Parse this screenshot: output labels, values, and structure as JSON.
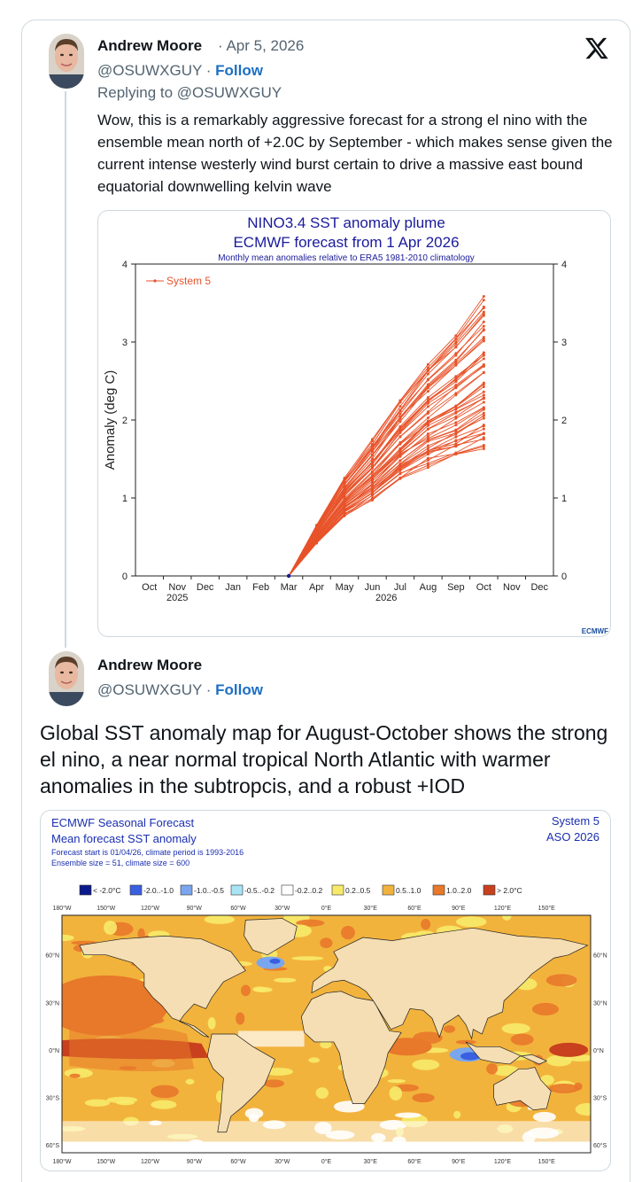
{
  "tweet1": {
    "name": "Andrew Moore",
    "date": "· Apr 5, 2026",
    "handle": "@OSUWXGUY",
    "follow": "Follow",
    "replying": "Replying to @OSUWXGUY",
    "text": "Wow, this is a remarkably aggressive forecast for a strong el nino with the ensemble mean north of +2.0C by September - which makes sense given the current intense westerly wind burst certain to drive a massive east bound equatorial downwelling kelvin wave"
  },
  "tweet2": {
    "name": "Andrew Moore",
    "handle": "@OSUWXGUY",
    "follow": "Follow",
    "text": "Global SST anomaly map for August-October shows the strong el nino, a near normal tropical North Atlantic with warmer anomalies in the subtropcis, and a robust +IOD"
  },
  "icons": {
    "brand": "x-logo-icon"
  },
  "chart_data": {
    "type": "line",
    "title": "NINO3.4 SST anomaly plume",
    "subtitle": "ECMWF forecast from 1 Apr 2026",
    "note": "Monthly mean anomalies relative to ERA5 1981-2010 climatology",
    "ylabel": "Anomaly (deg C)",
    "ylim": [
      0,
      4
    ],
    "yticks": [
      "0",
      "1",
      "2",
      "3",
      "4"
    ],
    "categories": [
      "Oct",
      "Nov",
      "Dec",
      "Jan",
      "Feb",
      "Mar",
      "Apr",
      "May",
      "Jun",
      "Jul",
      "Aug",
      "Sep",
      "Oct",
      "Nov",
      "Dec"
    ],
    "year_labels": [
      "2025",
      "2026"
    ],
    "legend": "System 5",
    "legend_position": "top-left",
    "credit": "ECMWF",
    "series_color": "#e8532a",
    "start_value": 0.0,
    "ensemble_mean": [
      0.0,
      0.52,
      0.98,
      1.3,
      1.68,
      1.98,
      2.2,
      2.45
    ],
    "member_range_oct": [
      1.65,
      3.6
    ],
    "members_count": 51
  },
  "map": {
    "title1": "ECMWF Seasonal Forecast",
    "title2": "Mean forecast SST anomaly",
    "sub1": "Forecast start is 01/04/26, climate period is 1993-2016",
    "sub2": "Ensemble size = 51, climate size = 600",
    "system": "System 5",
    "season": "ASO 2026",
    "legend": [
      {
        "label": "< -2.0°C",
        "color": "#0a1a8c"
      },
      {
        "label": "-2.0..-1.0",
        "color": "#3a5fe0"
      },
      {
        "label": "-1.0..-0.5",
        "color": "#7aa6ee"
      },
      {
        "label": "-0.5..-0.2",
        "color": "#a8e4f4"
      },
      {
        "label": "-0.2..0.2",
        "color": "#ffffff"
      },
      {
        "label": "0.2..0.5",
        "color": "#f7ea6a"
      },
      {
        "label": "0.5..1.0",
        "color": "#f2b33c"
      },
      {
        "label": "1.0..2.0",
        "color": "#e8782a"
      },
      {
        "label": "> 2.0°C",
        "color": "#c8401e"
      }
    ],
    "lon_labels": [
      "180°W",
      "150°W",
      "120°W",
      "90°W",
      "60°W",
      "30°W",
      "0°E",
      "30°E",
      "60°E",
      "90°E",
      "120°E",
      "150°E"
    ],
    "lat_labels": [
      "60°N",
      "30°N",
      "0°N",
      "30°S",
      "60°S"
    ]
  }
}
